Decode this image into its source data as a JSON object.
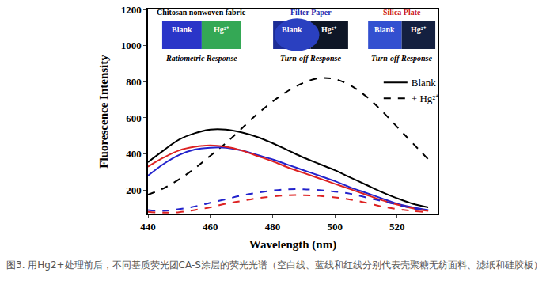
{
  "chart_data": {
    "type": "line",
    "x_label": "Wavelength (nm)",
    "y_label": "Fluorescence Intensity",
    "x": [
      440,
      445,
      450,
      455,
      460,
      465,
      470,
      475,
      480,
      485,
      490,
      495,
      500,
      505,
      510,
      515,
      520,
      525,
      530
    ],
    "series": [
      {
        "name": "Blank",
        "color": "#000000",
        "line_style": "solid",
        "values": [
          355,
          420,
          480,
          515,
          535,
          535,
          520,
          495,
          460,
          420,
          380,
          345,
          310,
          270,
          230,
          190,
          155,
          125,
          105
        ]
      },
      {
        "name": "+ Hg²⁺",
        "color": "#000000",
        "line_style": "dash",
        "values": [
          175,
          210,
          260,
          320,
          390,
          460,
          540,
          620,
          690,
          750,
          795,
          820,
          815,
          780,
          720,
          640,
          550,
          460,
          370
        ]
      },
      {
        "name": "Blank",
        "color": "#2222cc",
        "line_style": "solid",
        "values": [
          280,
          345,
          395,
          425,
          435,
          435,
          420,
          395,
          370,
          340,
          310,
          280,
          250,
          215,
          185,
          155,
          125,
          105,
          90
        ]
      },
      {
        "name": "Blank",
        "color": "#dd2222",
        "line_style": "solid",
        "values": [
          330,
          380,
          420,
          440,
          448,
          440,
          420,
          390,
          360,
          325,
          295,
          265,
          235,
          205,
          175,
          145,
          120,
          100,
          85
        ]
      },
      {
        "name": "+ Hg²⁺",
        "color": "#2222cc",
        "line_style": "dash",
        "values": [
          90,
          85,
          95,
          110,
          130,
          150,
          170,
          185,
          198,
          205,
          205,
          200,
          192,
          180,
          160,
          140,
          120,
          100,
          85
        ]
      },
      {
        "name": "+ Hg²⁺",
        "color": "#dd2222",
        "line_style": "dash",
        "values": [
          80,
          75,
          78,
          90,
          105,
          125,
          140,
          155,
          165,
          172,
          172,
          168,
          160,
          148,
          130,
          110,
          95,
          85,
          78
        ]
      }
    ],
    "xlim": [
      440,
      533
    ],
    "xticks": [
      440,
      460,
      480,
      500,
      520
    ],
    "ylim": [
      70,
      1200
    ],
    "yticks": [
      200,
      400,
      600,
      800,
      1000,
      1200
    ],
    "grid": false,
    "legend": "upper right",
    "insets": [
      {
        "title": "Chitosan nonwoven fabric",
        "labels": [
          "Blank",
          "Hg²⁺"
        ],
        "response": "Ratiometric Response"
      },
      {
        "title": "Filter Paper",
        "labels": [
          "Blank",
          "Hg²⁺"
        ],
        "response": "Turn-off Response"
      },
      {
        "title": "Silica Plate",
        "labels": [
          "Blank",
          "Hg²⁺"
        ],
        "response": "Turn-off Response"
      }
    ],
    "caption": "图3. 用Hg2+处理前后，不同基质荧光团CA-S涂层的荧光光谱（空白线、蓝线和红线分别代表壳聚糖无纺面料、滤纸和硅胶板）"
  }
}
